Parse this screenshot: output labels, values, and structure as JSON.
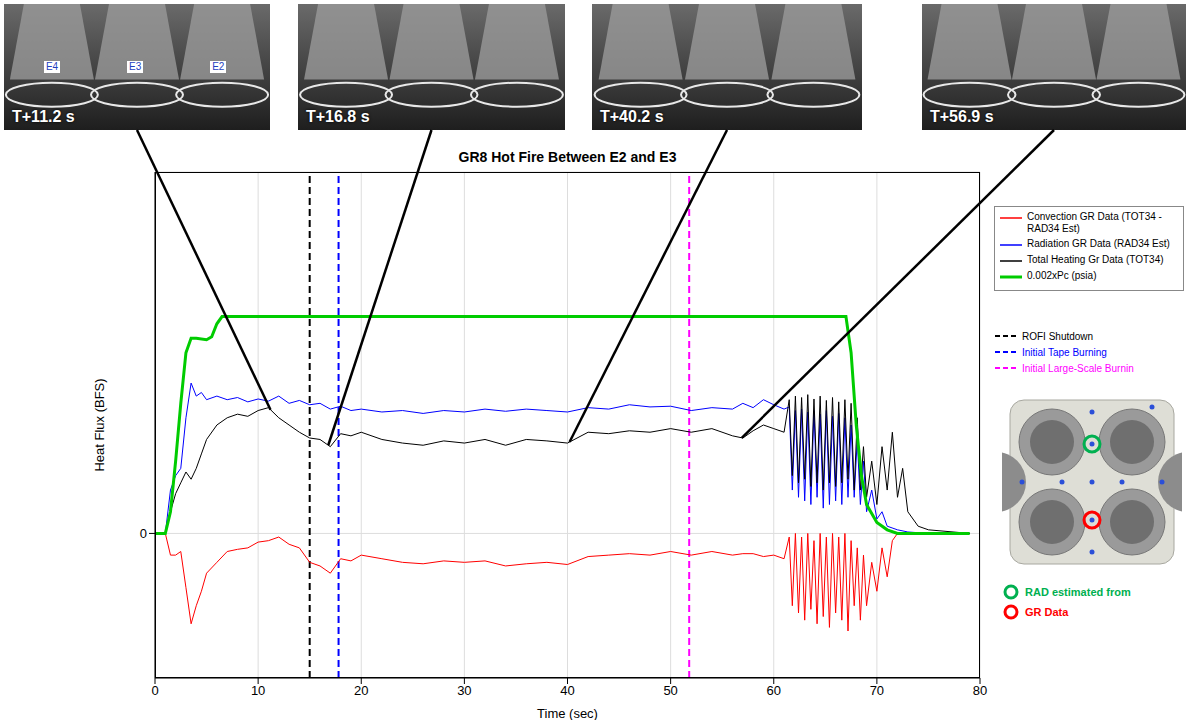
{
  "chart_data": {
    "type": "line",
    "title": "GR8 Hot Fire Between E2 and E3",
    "x_label": "Time (sec)",
    "y_label": "Heat Flux (BFS)",
    "xlim": [
      0,
      80
    ],
    "xticks": [
      0,
      10,
      20,
      30,
      40,
      50,
      60,
      70,
      80
    ],
    "ylim": [
      -2,
      5
    ],
    "yticks": [
      0
    ],
    "grid": true,
    "legend": "right",
    "series": [
      {
        "name": "Convection GR Data (TOT34 - RAD34 Est)",
        "color": "#ff0000",
        "line_style": "solid",
        "x": [
          0,
          1,
          1.5,
          2,
          2.5,
          3,
          3.5,
          4,
          4.5,
          5,
          6,
          7,
          8,
          9,
          10,
          11,
          12,
          13,
          14,
          15,
          16,
          17,
          18,
          19,
          20,
          22,
          24,
          26,
          28,
          30,
          32,
          34,
          36,
          38,
          40,
          42,
          44,
          46,
          48,
          50,
          52,
          54,
          56,
          57,
          58,
          59,
          60,
          61,
          61.5,
          61.8,
          62.1,
          62.4,
          62.7,
          63,
          63.3,
          63.6,
          63.9,
          64.2,
          64.5,
          64.8,
          65.1,
          65.4,
          65.7,
          66,
          66.3,
          66.6,
          66.9,
          67.2,
          67.5,
          67.8,
          68.1,
          68.4,
          68.7,
          69,
          69.5,
          70,
          70.5,
          71,
          71.5,
          72,
          79
        ],
        "values": [
          0,
          0,
          -0.3,
          -0.3,
          -0.25,
          -0.75,
          -1.25,
          -1.0,
          -0.8,
          -0.55,
          -0.4,
          -0.25,
          -0.22,
          -0.2,
          -0.12,
          -0.1,
          -0.05,
          -0.15,
          -0.2,
          -0.4,
          -0.45,
          -0.55,
          -0.35,
          -0.38,
          -0.3,
          -0.35,
          -0.4,
          -0.42,
          -0.38,
          -0.4,
          -0.38,
          -0.45,
          -0.42,
          -0.4,
          -0.43,
          -0.32,
          -0.3,
          -0.28,
          -0.3,
          -0.25,
          -0.3,
          -0.25,
          -0.3,
          -0.28,
          -0.28,
          -0.32,
          -0.3,
          -0.35,
          -0.05,
          -1.0,
          0,
          -1.1,
          -0.05,
          -1.2,
          0,
          -1.05,
          -0.1,
          -1.25,
          0,
          -1.15,
          -0.05,
          -1.3,
          0,
          -1.1,
          -0.05,
          -1.2,
          0,
          -1.35,
          -0.1,
          -1.0,
          -0.2,
          -1.2,
          -0.3,
          -1.0,
          -0.4,
          -0.8,
          -0.2,
          -0.6,
          -0.1,
          0,
          0
        ]
      },
      {
        "name": "Radiation GR Data (RAD34 Est)",
        "color": "#0000ff",
        "line_style": "solid",
        "x": [
          0,
          1,
          1.5,
          2,
          2.5,
          3,
          3.5,
          4,
          4.5,
          5,
          6,
          7,
          8,
          9,
          10,
          11,
          12,
          13,
          14,
          15,
          16,
          17,
          18,
          19,
          20,
          22,
          24,
          26,
          28,
          30,
          32,
          34,
          36,
          38,
          40,
          42,
          44,
          46,
          48,
          50,
          52,
          54,
          56,
          57,
          58,
          59,
          60,
          61,
          61.5,
          61.8,
          62.1,
          62.4,
          62.7,
          63,
          63.3,
          63.6,
          63.9,
          64.2,
          64.5,
          64.8,
          65.1,
          65.4,
          65.7,
          66,
          66.3,
          66.6,
          66.9,
          67.2,
          67.5,
          67.8,
          68.1,
          68.4,
          68.7,
          69,
          69.5,
          70,
          70.5,
          71,
          72,
          73,
          75,
          79
        ],
        "values": [
          0,
          0,
          0.6,
          0.8,
          0.9,
          1.6,
          2.08,
          1.9,
          1.95,
          1.85,
          1.9,
          1.85,
          1.88,
          1.82,
          1.86,
          1.83,
          1.9,
          1.8,
          1.84,
          1.78,
          1.8,
          1.72,
          1.76,
          1.7,
          1.72,
          1.68,
          1.7,
          1.66,
          1.7,
          1.68,
          1.72,
          1.69,
          1.72,
          1.7,
          1.68,
          1.74,
          1.72,
          1.78,
          1.75,
          1.76,
          1.7,
          1.74,
          1.72,
          1.8,
          1.74,
          1.85,
          1.78,
          1.72,
          1.75,
          0.6,
          1.7,
          0.5,
          1.72,
          0.45,
          1.68,
          0.4,
          1.7,
          0.5,
          1.65,
          0.35,
          1.7,
          0.4,
          1.62,
          0.45,
          1.66,
          0.4,
          1.6,
          0.5,
          1.5,
          0.5,
          1.3,
          0.4,
          1.0,
          0.3,
          0.6,
          0.2,
          0.3,
          0.1,
          0.05,
          0.02,
          0,
          0
        ]
      },
      {
        "name": "Total Heating Gr Data (TOT34)",
        "color": "#000000",
        "line_style": "solid",
        "x": [
          0,
          1,
          1.5,
          2,
          2.5,
          3,
          3.5,
          4,
          4.5,
          5,
          6,
          7,
          8,
          9,
          10,
          11,
          12,
          13,
          14,
          15,
          16,
          17,
          18,
          19,
          20,
          22,
          24,
          26,
          28,
          30,
          32,
          34,
          36,
          38,
          40,
          42,
          44,
          46,
          48,
          50,
          52,
          54,
          56,
          57,
          58,
          59,
          60,
          61,
          61.5,
          61.8,
          62.1,
          62.4,
          62.7,
          63,
          63.3,
          63.6,
          63.9,
          64.2,
          64.5,
          64.8,
          65.1,
          65.4,
          65.7,
          66,
          66.3,
          66.6,
          66.9,
          67.2,
          67.5,
          67.8,
          68.1,
          68.4,
          68.7,
          69,
          69.5,
          70,
          70.5,
          71,
          71.5,
          72,
          72.5,
          73,
          74,
          75,
          79
        ],
        "values": [
          0,
          0,
          0.3,
          0.55,
          0.7,
          0.85,
          0.75,
          0.9,
          1.1,
          1.3,
          1.5,
          1.6,
          1.65,
          1.62,
          1.7,
          1.74,
          1.6,
          1.5,
          1.4,
          1.32,
          1.3,
          1.2,
          1.38,
          1.35,
          1.4,
          1.3,
          1.25,
          1.22,
          1.28,
          1.25,
          1.3,
          1.22,
          1.3,
          1.28,
          1.25,
          1.4,
          1.38,
          1.42,
          1.4,
          1.45,
          1.4,
          1.45,
          1.35,
          1.32,
          1.42,
          1.5,
          1.45,
          1.4,
          1.85,
          0.8,
          1.9,
          0.7,
          1.88,
          0.75,
          1.92,
          0.65,
          1.86,
          0.7,
          1.9,
          0.6,
          1.84,
          0.7,
          1.88,
          0.65,
          1.82,
          0.7,
          1.85,
          0.75,
          1.8,
          0.6,
          1.6,
          0.6,
          1.2,
          0.5,
          1.0,
          0.4,
          1.2,
          0.6,
          1.4,
          0.5,
          0.9,
          0.3,
          0.1,
          0.05,
          0
        ]
      },
      {
        "name": "0.002xPc (psia)",
        "color": "#00cc00",
        "line_style": "solid",
        "x": [
          0,
          1,
          1.5,
          2,
          2.5,
          3,
          3.5,
          4,
          5,
          5.5,
          6,
          6.5,
          7,
          10,
          20,
          30,
          40,
          50,
          60,
          67,
          67.5,
          68,
          68.5,
          69,
          70,
          71,
          72,
          79
        ],
        "values": [
          0,
          0,
          0.3,
          1.0,
          1.8,
          2.5,
          2.7,
          2.7,
          2.68,
          2.72,
          2.9,
          3.0,
          3.0,
          3.0,
          3.0,
          3.0,
          3.0,
          3.0,
          3.0,
          3.0,
          2.5,
          1.5,
          0.8,
          0.4,
          0.15,
          0.05,
          0,
          0
        ]
      }
    ],
    "markers": [
      {
        "x": 15,
        "label": "ROFI Shutdown",
        "color": "#000000",
        "line_style": "dashed"
      },
      {
        "x": 17.8,
        "label": "Initial Tape Burning",
        "color": "#0000ff",
        "line_style": "dashed"
      },
      {
        "x": 51.8,
        "label": "Initial Large-Scale Burnin",
        "color": "#ff00ff",
        "line_style": "dashed"
      }
    ]
  },
  "photos": [
    {
      "label": "T+11.2 s",
      "tags": [
        "E4",
        "E3",
        "E2"
      ]
    },
    {
      "label": "T+16.8 s"
    },
    {
      "label": "T+40.2 s"
    },
    {
      "label": "T+56.9 s"
    }
  ],
  "inset": {
    "labels": [
      {
        "text": "RAD estimated from",
        "color": "#00b050"
      },
      {
        "text": "GR Data",
        "color": "#ff0000"
      }
    ]
  }
}
